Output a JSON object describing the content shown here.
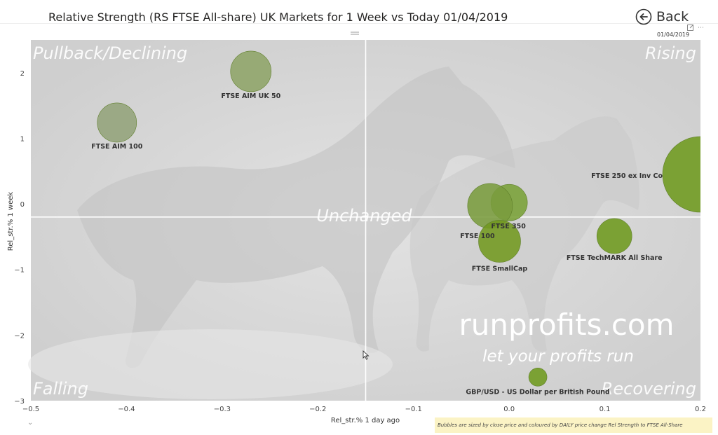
{
  "header": {
    "title": "Relative Strength (RS FTSE All-share) UK Markets for 1 Week vs Today 01/04/2019",
    "back_label": "Back",
    "date_stamp": "01/04/2019",
    "more_icon": "ellipsis-icon",
    "focus_icon": "focus-mode-icon"
  },
  "footnote": "Bubbles are sized by close price and coloured by DAILY price change Rel Strength to FTSE All-Share",
  "watermark": {
    "site": "runprofits.com",
    "tagline": "let your profits run"
  },
  "quadrants": {
    "top_left": "Pullback/Declining",
    "top_right": "Rising",
    "bottom_left": "Falling",
    "bottom_right": "Recovering",
    "center": "Unchanged"
  },
  "colors": {
    "strong": "#6e9a1e",
    "medium": "#7a9a3e",
    "weak": "#93a37a",
    "plot_bg": "#d8d8d8"
  },
  "chart_data": {
    "type": "scatter",
    "title": "Relative Strength (RS FTSE All-share) UK Markets for 1 Week vs Today 01/04/2019",
    "xlabel": "Rel_str.% 1 day ago",
    "ylabel": "Rel_str.% 1 week",
    "xlim": [
      -0.5,
      0.2
    ],
    "ylim": [
      -3,
      2.5
    ],
    "x_ticks": [
      -0.5,
      -0.4,
      -0.3,
      -0.2,
      -0.1,
      0.0,
      0.1,
      0.2
    ],
    "x_tick_labels": [
      "−0.5",
      "−0.4",
      "−0.3",
      "−0.2",
      "−0.1",
      "0.0",
      "0.1",
      "0.2"
    ],
    "y_ticks": [
      2,
      1,
      0,
      -1,
      -2,
      -3
    ],
    "y_tick_labels": [
      "2",
      "1",
      "0",
      "−1",
      "−2",
      "−3"
    ],
    "reference_lines": {
      "x": -0.15,
      "y": -0.2
    },
    "grid": false,
    "points": [
      {
        "label": "FTSE AIM UK 50",
        "x": -0.27,
        "y": 2.02,
        "size": 29,
        "color": "#8ea468"
      },
      {
        "label": "FTSE AIM 100",
        "x": -0.41,
        "y": 1.24,
        "size": 28,
        "color": "#93a37a"
      },
      {
        "label": "FTSE 250 ex Inv Co",
        "x": 0.2,
        "y": 0.45,
        "size": 54,
        "color": "#6e9a1e"
      },
      {
        "label": "FTSE 350",
        "x": 0.0,
        "y": 0.02,
        "size": 26,
        "color": "#79a037"
      },
      {
        "label": "FTSE 100",
        "x": -0.02,
        "y": -0.03,
        "size": 32,
        "color": "#7a9c3e"
      },
      {
        "label": "FTSE SmallCap",
        "x": -0.01,
        "y": -0.57,
        "size": 30,
        "color": "#72981f"
      },
      {
        "label": "FTSE TechMARK All Share",
        "x": 0.11,
        "y": -0.49,
        "size": 25,
        "color": "#6e9a1e"
      },
      {
        "label": "GBP/USD - US Dollar per British Pound",
        "x": 0.03,
        "y": -2.64,
        "size": 13,
        "color": "#6e9a1e"
      }
    ]
  }
}
